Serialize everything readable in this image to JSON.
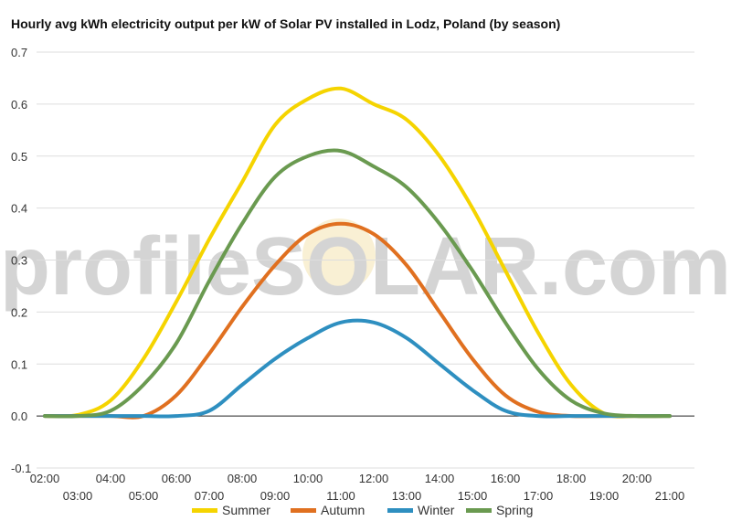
{
  "chart_data": {
    "type": "line",
    "title": "Hourly avg kWh electricity output per kW of Solar PV installed in Lodz, Poland (by season)",
    "xlabel": "",
    "ylabel": "",
    "x": [
      2,
      3,
      4,
      5,
      6,
      7,
      8,
      9,
      10,
      11,
      12,
      13,
      14,
      15,
      16,
      17,
      18,
      19,
      20,
      21
    ],
    "x_tick_labels": [
      "02:00",
      "03:00",
      "04:00",
      "05:00",
      "06:00",
      "07:00",
      "08:00",
      "09:00",
      "10:00",
      "11:00",
      "12:00",
      "13:00",
      "14:00",
      "15:00",
      "16:00",
      "17:00",
      "18:00",
      "19:00",
      "20:00",
      "21:00"
    ],
    "ylim": [
      -0.1,
      0.7
    ],
    "y_ticks": [
      "-0.1",
      "0.0",
      "0.1",
      "0.2",
      "0.3",
      "0.4",
      "0.5",
      "0.6",
      "0.7"
    ],
    "grid": true,
    "legend_position": "bottom",
    "series": [
      {
        "name": "Summer",
        "color": "#f5d400",
        "values": [
          0.0,
          0.002,
          0.03,
          0.11,
          0.22,
          0.34,
          0.45,
          0.56,
          0.61,
          0.63,
          0.6,
          0.57,
          0.5,
          0.4,
          0.28,
          0.16,
          0.06,
          0.005,
          0.0,
          0.0
        ]
      },
      {
        "name": "Autumn",
        "color": "#e07020",
        "values": [
          0.0,
          0.0,
          0.0,
          0.0,
          0.04,
          0.12,
          0.21,
          0.29,
          0.35,
          0.37,
          0.35,
          0.29,
          0.2,
          0.11,
          0.04,
          0.008,
          0.0,
          0.0,
          0.0,
          0.0
        ]
      },
      {
        "name": "Winter",
        "color": "#2e8fc0",
        "values": [
          0.0,
          0.0,
          0.0,
          0.0,
          0.0,
          0.01,
          0.06,
          0.11,
          0.15,
          0.18,
          0.18,
          0.15,
          0.1,
          0.05,
          0.01,
          0.0,
          0.0,
          0.0,
          0.0,
          0.0
        ]
      },
      {
        "name": "Spring",
        "color": "#6a9a50",
        "values": [
          0.0,
          0.0,
          0.01,
          0.06,
          0.14,
          0.26,
          0.37,
          0.46,
          0.5,
          0.51,
          0.48,
          0.44,
          0.37,
          0.28,
          0.18,
          0.09,
          0.03,
          0.005,
          0.0,
          0.0
        ]
      }
    ],
    "watermark": "profileSOLAR.com"
  }
}
